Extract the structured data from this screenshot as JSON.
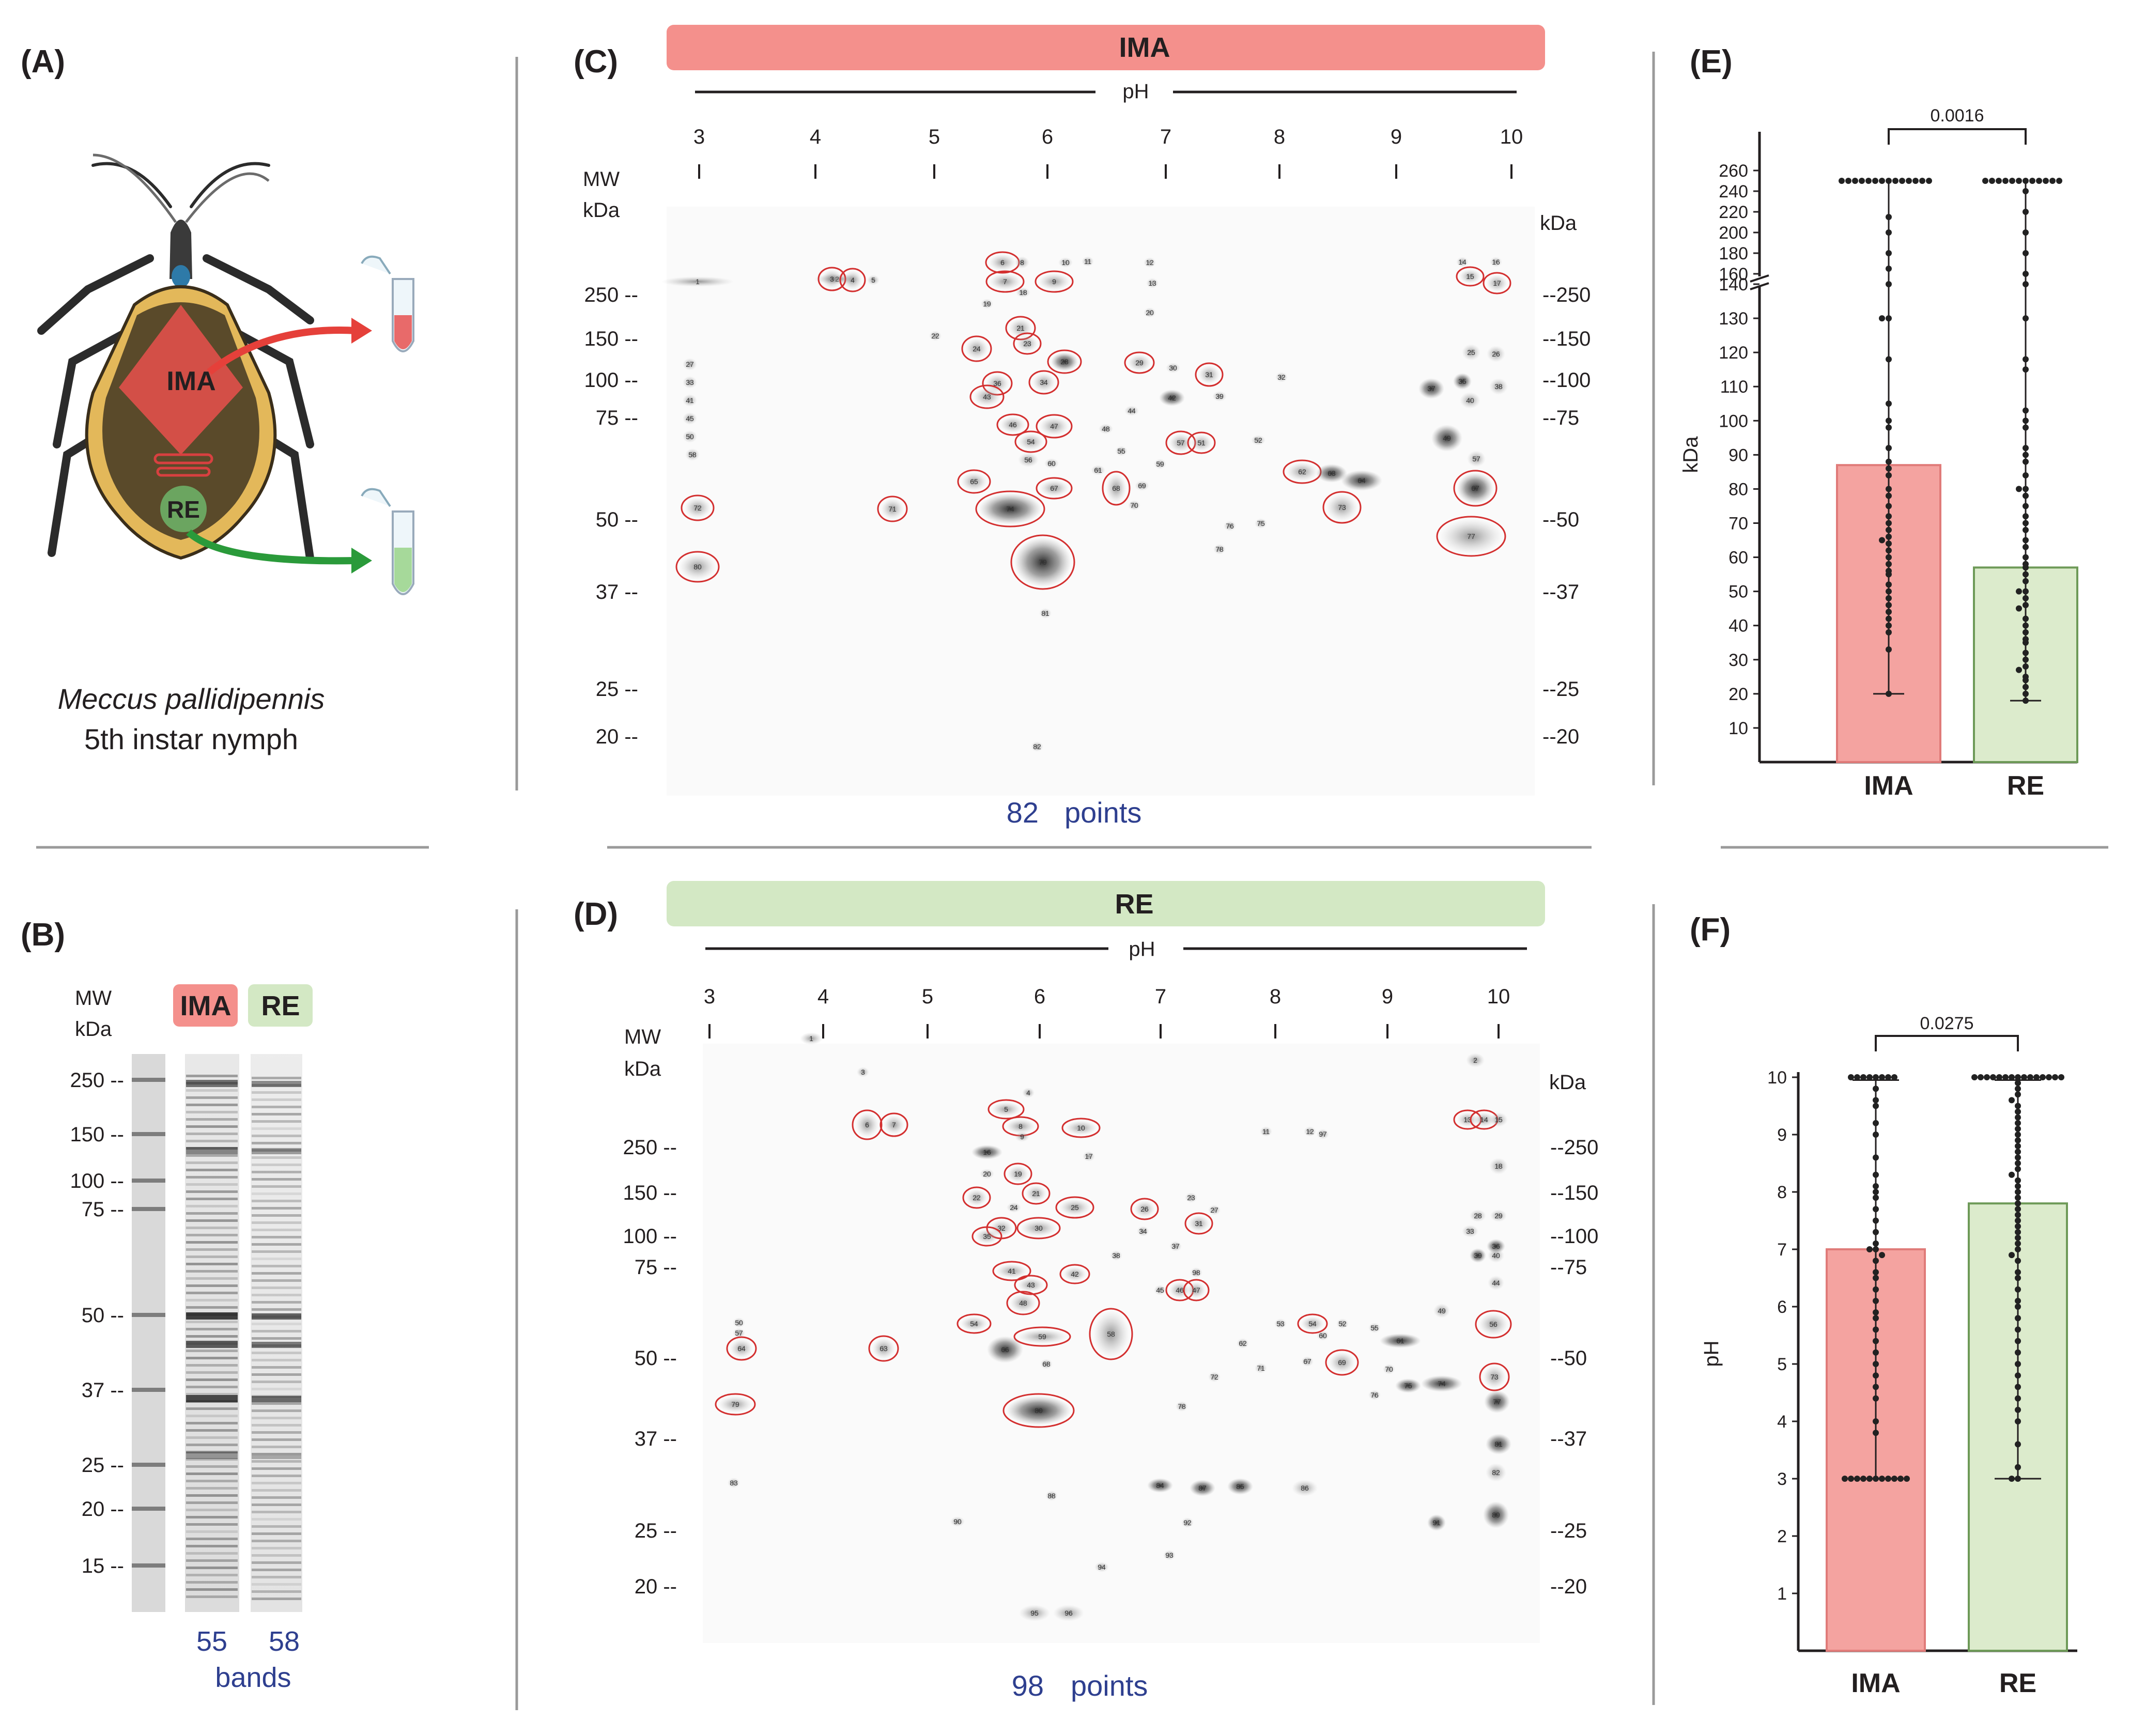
{
  "colors": {
    "ima": "#f4908c",
    "re": "#d3e8c4",
    "ima_bar": "#f4a3a0",
    "re_bar": "#dcebcc",
    "bar_edge_ima": "#e07b79",
    "bar_edge_re": "#6e9a58",
    "oval": "#d32f2f",
    "text_blue": "#2e3f8f"
  },
  "panel_a": {
    "label": "(A)",
    "species": "Meccus pallidipennis",
    "stage": "5th instar nymph",
    "region_ima": "IMA",
    "region_re": "RE"
  },
  "panel_b": {
    "label": "(B)",
    "mw_header": [
      "MW",
      "kDa"
    ],
    "markers": [
      "250",
      "150",
      "100",
      "75",
      "50",
      "37",
      "25",
      "20",
      "15"
    ],
    "lane_ima": "IMA",
    "lane_re": "RE",
    "band_counts": [
      "55",
      "58"
    ],
    "bands_label": "bands"
  },
  "panel_c": {
    "label": "(C)",
    "banner": "IMA",
    "ph_label": "pH",
    "ph_ticks": [
      "3",
      "4",
      "5",
      "6",
      "7",
      "8",
      "9",
      "10"
    ],
    "mw_header": [
      "MW",
      "kDa"
    ],
    "kda_right": "kDa",
    "mw_left": [
      "250 --",
      "150 --",
      "100 --",
      "75 --",
      "50 --",
      "37 --",
      "25 --",
      "20 --"
    ],
    "mw_right": [
      "--250",
      "--150",
      "--100",
      "--75",
      "--50",
      "--37",
      "--25",
      "--20"
    ],
    "count": "82",
    "count_label": "points"
  },
  "panel_d": {
    "label": "(D)",
    "banner": "RE",
    "ph_label": "pH",
    "ph_ticks": [
      "3",
      "4",
      "5",
      "6",
      "7",
      "8",
      "9",
      "10"
    ],
    "mw_header": [
      "MW",
      "kDa"
    ],
    "kda_right": "kDa",
    "mw_left": [
      "250 --",
      "150 --",
      "100 --",
      "75 --",
      "50 --",
      "37 --",
      "25 --",
      "20 --"
    ],
    "mw_right": [
      "--250",
      "--150",
      "--100",
      "--75",
      "--50",
      "--37",
      "--25",
      "--20"
    ],
    "count": "98",
    "count_label": "points"
  },
  "chart_data": [
    {
      "panel": "(E)",
      "type": "bar",
      "ylabel": "kDa",
      "categories": [
        "IMA",
        "RE"
      ],
      "values": [
        87,
        57
      ],
      "error_low": [
        20,
        18
      ],
      "error_high": [
        250,
        250
      ],
      "significance": "0.0016",
      "yticks_lower": [
        "10",
        "20",
        "30",
        "40",
        "50",
        "60",
        "70",
        "80",
        "90",
        "100",
        "110",
        "120",
        "130",
        "140"
      ],
      "yticks_upper": [
        "160",
        "180",
        "200",
        "220",
        "240",
        "260"
      ],
      "ylim_lower": [
        0,
        140
      ],
      "ylim_upper": [
        155,
        265
      ],
      "points_ima": [
        250,
        250,
        250,
        250,
        250,
        250,
        250,
        250,
        250,
        250,
        250,
        250,
        250,
        250,
        215,
        200,
        180,
        165,
        150,
        130,
        130,
        118,
        105,
        100,
        98,
        92,
        88,
        86,
        84,
        80,
        78,
        75,
        72,
        70,
        68,
        66,
        65,
        64,
        62,
        60,
        58,
        56,
        55,
        52,
        50,
        48,
        46,
        44,
        42,
        40,
        38,
        33,
        20
      ],
      "points_re": [
        250,
        250,
        250,
        250,
        250,
        250,
        250,
        250,
        250,
        250,
        250,
        250,
        240,
        220,
        200,
        180,
        160,
        140,
        130,
        118,
        115,
        103,
        100,
        98,
        92,
        90,
        88,
        84,
        80,
        80,
        78,
        75,
        72,
        70,
        68,
        65,
        63,
        60,
        58,
        57,
        55,
        53,
        50,
        50,
        48,
        46,
        45,
        42,
        40,
        38,
        36,
        35,
        32,
        30,
        28,
        27,
        25,
        24,
        22,
        20,
        18
      ]
    },
    {
      "panel": "(F)",
      "type": "bar",
      "ylabel": "pH",
      "categories": [
        "IMA",
        "RE"
      ],
      "values": [
        7.0,
        7.8
      ],
      "error_low": [
        3.0,
        3.0
      ],
      "error_high": [
        9.95,
        9.95
      ],
      "significance": "0.0275",
      "yticks": [
        "1",
        "2",
        "3",
        "4",
        "5",
        "6",
        "7",
        "8",
        "9",
        "10"
      ],
      "ylim": [
        0,
        10
      ],
      "points_ima": [
        10,
        10,
        10,
        10,
        10,
        10,
        10,
        10,
        9.8,
        9.6,
        9.5,
        9.2,
        9.0,
        8.6,
        8.3,
        8.1,
        8.0,
        7.9,
        7.7,
        7.5,
        7.3,
        7.1,
        7.0,
        7.0,
        6.9,
        6.8,
        6.6,
        6.5,
        6.3,
        6.1,
        5.9,
        5.8,
        5.6,
        5.4,
        5.2,
        5.0,
        4.8,
        4.6,
        4.4,
        4.0,
        3.8,
        3.0,
        3.0,
        3.0,
        3.0,
        3.0,
        3.0,
        3.0,
        3.0,
        3.0,
        3.0,
        3.0
      ],
      "points_re": [
        10,
        10,
        10,
        10,
        10,
        10,
        10,
        10,
        10,
        10,
        10,
        10,
        10,
        10,
        10,
        9.9,
        9.8,
        9.7,
        9.6,
        9.5,
        9.4,
        9.3,
        9.2,
        9.1,
        9.0,
        8.9,
        8.8,
        8.7,
        8.6,
        8.5,
        8.4,
        8.3,
        8.2,
        8.1,
        8.0,
        7.9,
        7.8,
        7.7,
        7.6,
        7.5,
        7.4,
        7.3,
        7.2,
        7.1,
        7.0,
        6.9,
        6.8,
        6.6,
        6.5,
        6.3,
        6.1,
        6.0,
        5.8,
        5.6,
        5.4,
        5.2,
        5.0,
        4.8,
        4.6,
        4.4,
        4.2,
        4.0,
        3.6,
        3.2,
        3.0,
        3.0
      ]
    }
  ]
}
